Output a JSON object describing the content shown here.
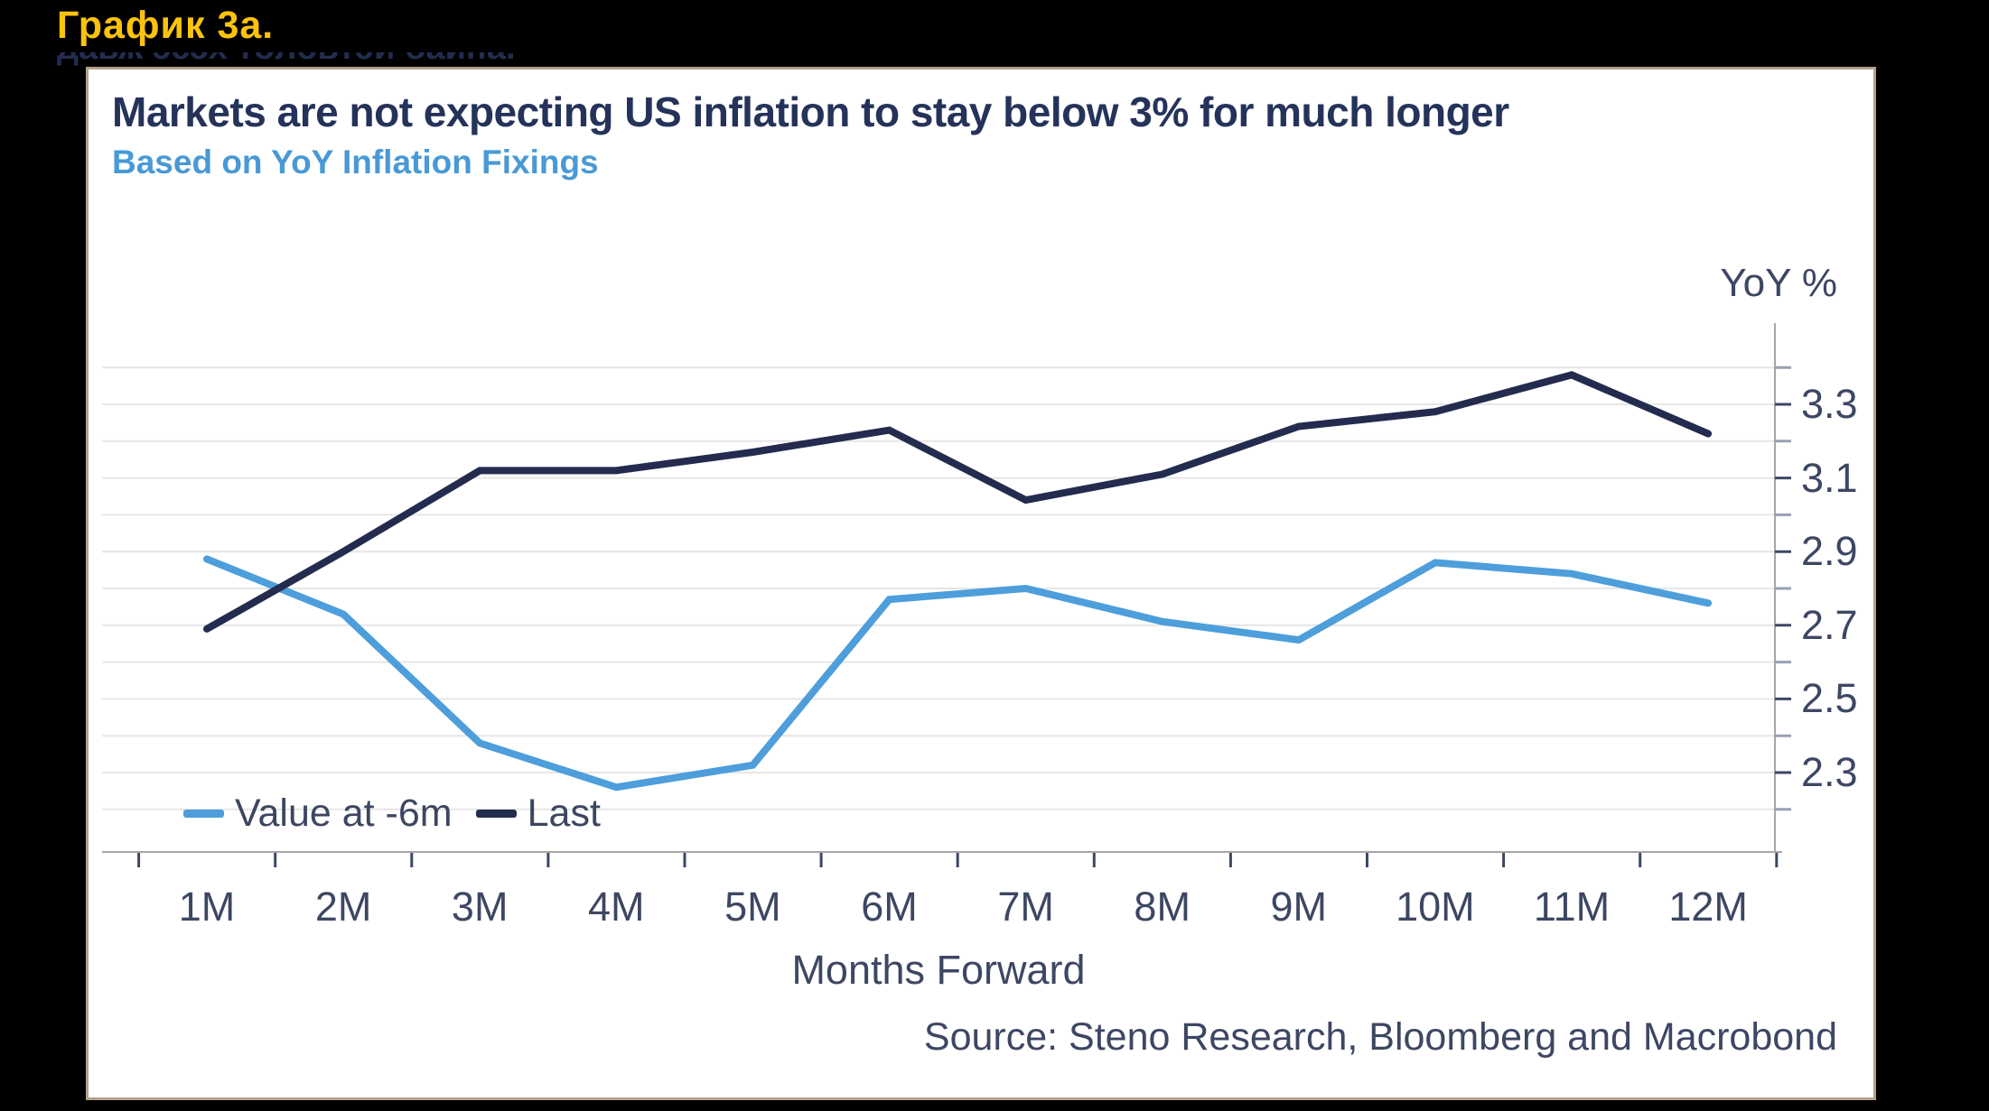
{
  "page": {
    "heading": "График 3а.",
    "clipped_line": "давж эсэх төлөвтэй байна.",
    "background_color": "#000000",
    "heading_color": "#fcc30c"
  },
  "chart_data": {
    "type": "line",
    "title": "Markets are not expecting US inflation to stay below 3% for much longer",
    "subtitle": "Based on YoY Inflation Fixings",
    "ylabel": "YoY %",
    "xlabel": "Months Forward",
    "source": "Source: Steno Research, Bloomberg and Macrobond",
    "categories": [
      "1M",
      "2M",
      "3M",
      "4M",
      "5M",
      "6M",
      "7M",
      "8M",
      "9M",
      "10M",
      "11M",
      "12M"
    ],
    "series": [
      {
        "name": "Value at -6m",
        "color": "#4d9edb",
        "values": [
          2.88,
          2.73,
          2.38,
          2.26,
          2.32,
          2.77,
          2.8,
          2.71,
          2.66,
          2.87,
          2.84,
          2.76
        ]
      },
      {
        "name": "Last",
        "color": "#232c4e",
        "values": [
          2.69,
          2.9,
          3.12,
          3.12,
          3.17,
          3.23,
          3.04,
          3.11,
          3.24,
          3.28,
          3.38,
          3.22
        ]
      }
    ],
    "y_tick_labels": [
      "2.3",
      "2.5",
      "2.7",
      "2.9",
      "3.1",
      "3.3"
    ],
    "y_tick_values": [
      2.3,
      2.5,
      2.7,
      2.9,
      3.1,
      3.3
    ],
    "grid_range": [
      2.2,
      3.4
    ],
    "grid_step": 0.1,
    "ylim": [
      2.1,
      3.5
    ],
    "axis_side": "right",
    "legend_position": "bottom-left",
    "grid_color": "#e6e6e6",
    "axis_color": "#a6a6a6",
    "tick_color": "#3d4763",
    "title_color": "#25335a",
    "subtitle_color": "#4999d6"
  }
}
